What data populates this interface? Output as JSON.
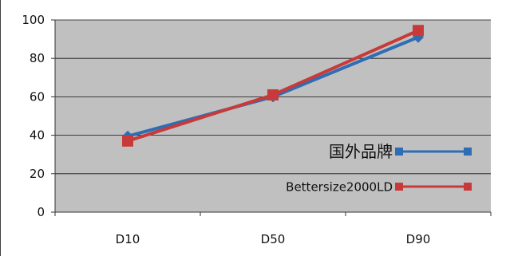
{
  "chart_data": {
    "type": "line",
    "categories": [
      "D10",
      "D50",
      "D90"
    ],
    "ylim": [
      0,
      100
    ],
    "yticks": [
      0,
      20,
      40,
      60,
      80,
      100
    ],
    "grid": true,
    "legend_position": "right",
    "series": [
      {
        "name": "国外品牌",
        "values": [
          39.5,
          60,
          91
        ],
        "color": "#2E6DB4",
        "marker": "diamond"
      },
      {
        "name": "Bettersize2000LD",
        "values": [
          37,
          61,
          94.5
        ],
        "color": "#C83A3A",
        "marker": "square"
      }
    ],
    "plot_background": "#C0C0C0"
  }
}
